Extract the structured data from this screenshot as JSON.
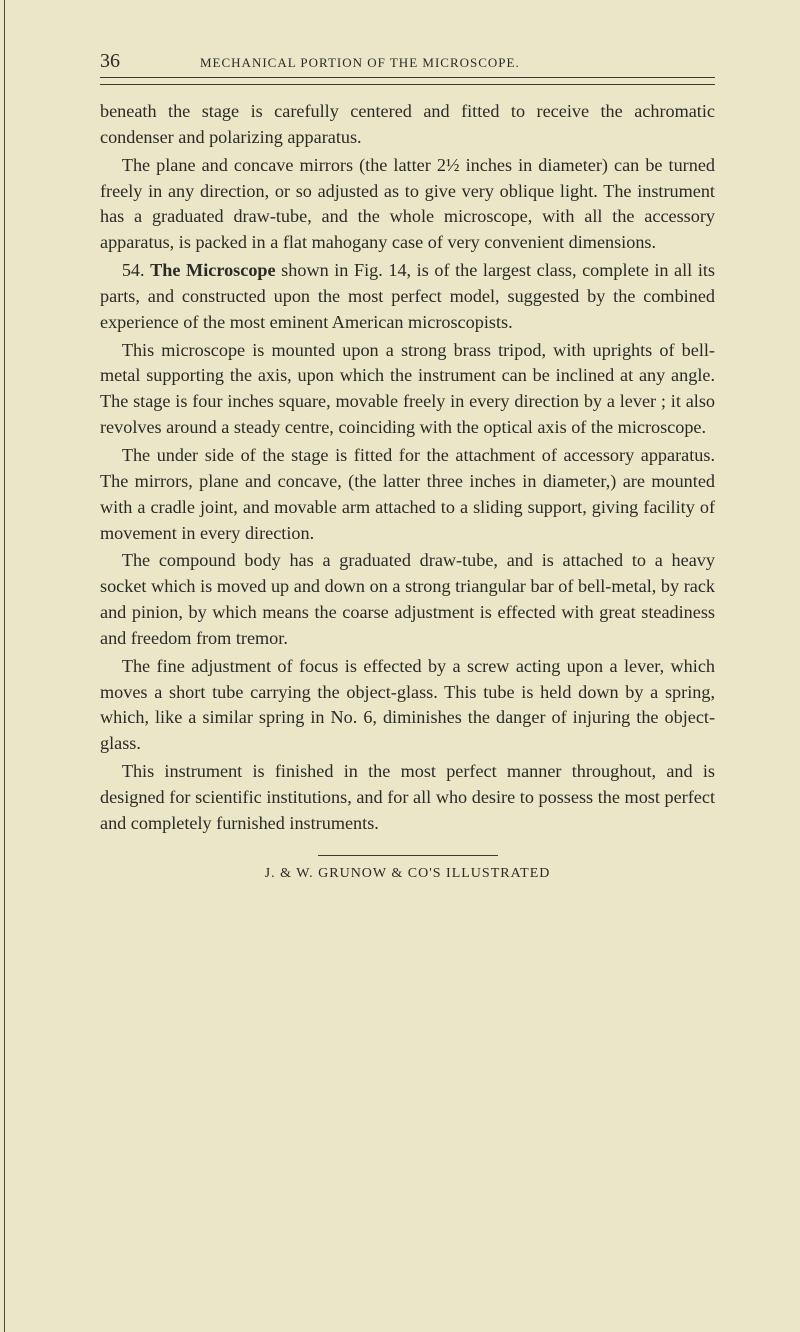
{
  "page": {
    "number": "36",
    "running_head": "MECHANICAL PORTION OF THE MICROSCOPE.",
    "footer": "J. & W. GRUNOW & CO'S ILLUSTRATED"
  },
  "paragraphs": {
    "p1": "beneath the stage is carefully centered and fitted to receive the achromatic condenser and polarizing apparatus.",
    "p2": "The plane and concave mirrors (the latter 2½ inches in diameter) can be turned freely in any direction, or so adjusted as to give very oblique light. The instrument has a graduated draw-tube, and the whole microscope, with all the accessory apparatus, is packed in a flat mahogany case of very convenient dimensions.",
    "p3_prefix": "54. ",
    "p3_bold": "The Microscope",
    "p3_rest": " shown in Fig. 14, is of the largest class, complete in all its parts, and constructed upon the most perfect model, suggested by the combined experience of the most eminent American microscopists.",
    "p4": "This microscope is mounted upon a strong brass tripod, with uprights of bell-metal supporting the axis, upon which the instrument can be inclined at any angle. The stage is four inches square, movable freely in every direction by a lever ; it also revolves around a steady centre, coinciding with the optical axis of the microscope.",
    "p5": "The under side of the stage is fitted for the attachment of accessory apparatus. The mirrors, plane and concave, (the latter three inches in diameter,) are mounted with a cradle joint, and movable arm attached to a sliding support, giving facility of movement in every direction.",
    "p6": "The compound body has a graduated draw-tube, and is attached to a heavy socket which is moved up and down on a strong triangular bar of bell-metal, by rack and pinion, by which means the coarse adjustment is effected with great steadiness and freedom from tremor.",
    "p7": "The fine adjustment of focus is effected by a screw acting upon a lever, which moves a short tube carrying the object-glass. This tube is held down by a spring, which, like a similar spring in No. 6, diminishes the danger of injuring the object-glass.",
    "p8": "This instrument is finished in the most perfect manner throughout, and is designed for scientific institutions, and for all who desire to possess the most perfect and completely furnished instruments."
  },
  "colors": {
    "background": "#ebe6c7",
    "text": "#2a2a26",
    "rule": "#3a3a32"
  },
  "typography": {
    "body_fontsize": 18.2,
    "body_lineheight": 1.42,
    "pagenum_fontsize": 20,
    "runhead_fontsize": 13,
    "footer_fontsize": 14,
    "font_family": "Georgia, Times New Roman, serif"
  }
}
